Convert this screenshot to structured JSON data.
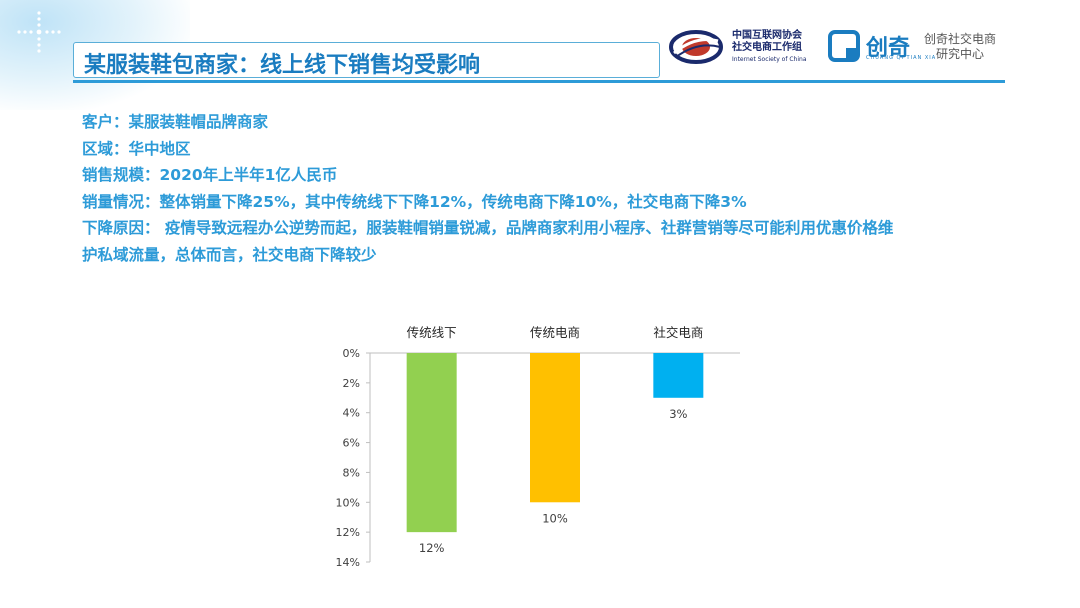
{
  "header": {
    "title": "某服装鞋包商家：线上线下销售均受影响",
    "logo_isc_line1": "中国互联网协会",
    "logo_isc_line2": "社交电商工作组",
    "logo_isc_sub": "Internet Society of China",
    "logo_cq_brand": "创奇",
    "logo_cq_pinyin": "CHUANG QI TIAN XIA",
    "logo_cq_line1": "创奇社交电商",
    "logo_cq_line2": "研究中心"
  },
  "info": {
    "line1": "客户：某服装鞋帽品牌商家",
    "line2": "区域：华中地区",
    "line3": "销售规模：2020年上半年1亿人民币",
    "line4": "销量情况：整体销量下降25%，其中传统线下下降12%，传统电商下降10%，社交电商下降3%",
    "line5": "下降原因： 疫情导致远程办公逆势而起，服装鞋帽销量锐减，品牌商家利用小程序、社群营销等尽可能利用优惠价格维",
    "line6": "护私域流量，总体而言，社交电商下降较少"
  },
  "chart_data": {
    "type": "bar",
    "categories": [
      "传统线下",
      "传统电商",
      "社交电商"
    ],
    "values": [
      12,
      10,
      3
    ],
    "value_labels": [
      "12%",
      "10%",
      "3%"
    ],
    "y_ticks": [
      "0%",
      "2%",
      "4%",
      "6%",
      "8%",
      "10%",
      "12%",
      "14%"
    ],
    "ylim": [
      0,
      14
    ],
    "y_axis_reversed": true,
    "category_labels_position": "top",
    "colors": [
      "#92d050",
      "#ffc000",
      "#00b0f0"
    ],
    "grid": false,
    "legend": "none"
  }
}
